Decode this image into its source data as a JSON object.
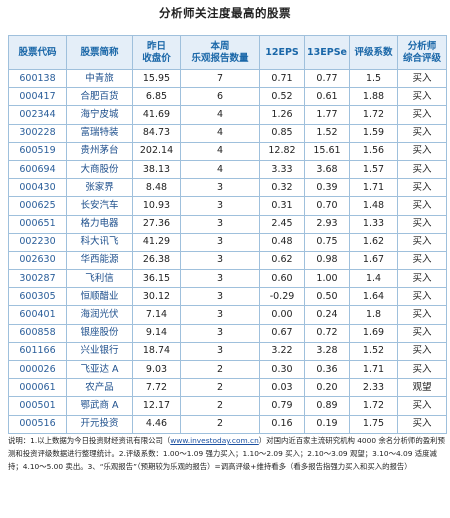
{
  "title": "分析师关注度最高的股票",
  "headers": [
    {
      "l1": "股票代码",
      "l2": ""
    },
    {
      "l1": "股票简称",
      "l2": ""
    },
    {
      "l1": "昨日",
      "l2": "收盘价"
    },
    {
      "l1": "本周",
      "l2": "乐观报告数量"
    },
    {
      "l1": "12EPS",
      "l2": ""
    },
    {
      "l1": "13EPSe",
      "l2": ""
    },
    {
      "l1": "评级系数",
      "l2": ""
    },
    {
      "l1": "分析师",
      "l2": "综合评级"
    }
  ],
  "rows": [
    [
      "600138",
      "中青旅",
      "15.95",
      "7",
      "0.71",
      "0.77",
      "1.5",
      "买入"
    ],
    [
      "000417",
      "合肥百货",
      "6.85",
      "6",
      "0.52",
      "0.61",
      "1.88",
      "买入"
    ],
    [
      "002344",
      "海宁皮城",
      "41.69",
      "4",
      "1.26",
      "1.77",
      "1.72",
      "买入"
    ],
    [
      "300228",
      "富瑞特装",
      "84.73",
      "4",
      "0.85",
      "1.52",
      "1.59",
      "买入"
    ],
    [
      "600519",
      "贵州茅台",
      "202.14",
      "4",
      "12.82",
      "15.61",
      "1.56",
      "买入"
    ],
    [
      "600694",
      "大商股份",
      "38.13",
      "4",
      "3.33",
      "3.68",
      "1.57",
      "买入"
    ],
    [
      "000430",
      "张家界",
      "8.48",
      "3",
      "0.32",
      "0.39",
      "1.71",
      "买入"
    ],
    [
      "000625",
      "长安汽车",
      "10.93",
      "3",
      "0.31",
      "0.70",
      "1.48",
      "买入"
    ],
    [
      "000651",
      "格力电器",
      "27.36",
      "3",
      "2.45",
      "2.93",
      "1.33",
      "买入"
    ],
    [
      "002230",
      "科大讯飞",
      "41.29",
      "3",
      "0.48",
      "0.75",
      "1.62",
      "买入"
    ],
    [
      "002630",
      "华西能源",
      "26.38",
      "3",
      "0.62",
      "0.98",
      "1.67",
      "买入"
    ],
    [
      "300287",
      "飞利信",
      "36.15",
      "3",
      "0.60",
      "1.00",
      "1.4",
      "买入"
    ],
    [
      "600305",
      "恒顺醋业",
      "30.12",
      "3",
      "-0.29",
      "0.50",
      "1.64",
      "买入"
    ],
    [
      "600401",
      "海润光伏",
      "7.14",
      "3",
      "0.00",
      "0.24",
      "1.8",
      "买入"
    ],
    [
      "600858",
      "银座股份",
      "9.14",
      "3",
      "0.67",
      "0.72",
      "1.69",
      "买入"
    ],
    [
      "601166",
      "兴业银行",
      "18.74",
      "3",
      "3.22",
      "3.28",
      "1.52",
      "买入"
    ],
    [
      "000026",
      "飞亚达 A",
      "9.03",
      "2",
      "0.30",
      "0.36",
      "1.71",
      "买入"
    ],
    [
      "000061",
      "农产品",
      "7.72",
      "2",
      "0.03",
      "0.20",
      "2.33",
      "观望"
    ],
    [
      "000501",
      "鄂武商 A",
      "12.17",
      "2",
      "0.79",
      "0.89",
      "1.72",
      "买入"
    ],
    [
      "000516",
      "开元投资",
      "4.46",
      "2",
      "0.16",
      "0.19",
      "1.75",
      "买入"
    ]
  ],
  "notes": {
    "part1": "说明：1.以上数据为今日投资财经资讯有限公司（",
    "link": "www.investoday.com.cn",
    "part2": "）对国内近百家主流研究机构 4000 余名分析师的盈利预测和投资评级数据进行整理统计。2.评级系数：1.00～1.09 强力买入；1.10～2.09 买入；2.10～3.09 观望；3.10～4.09 适度减持；4.10～5.00 卖出。3、“乐观报告”（预期较为乐观的报告）=调高评级+维持看多（看多报告指强力买入和买入的报告）"
  }
}
